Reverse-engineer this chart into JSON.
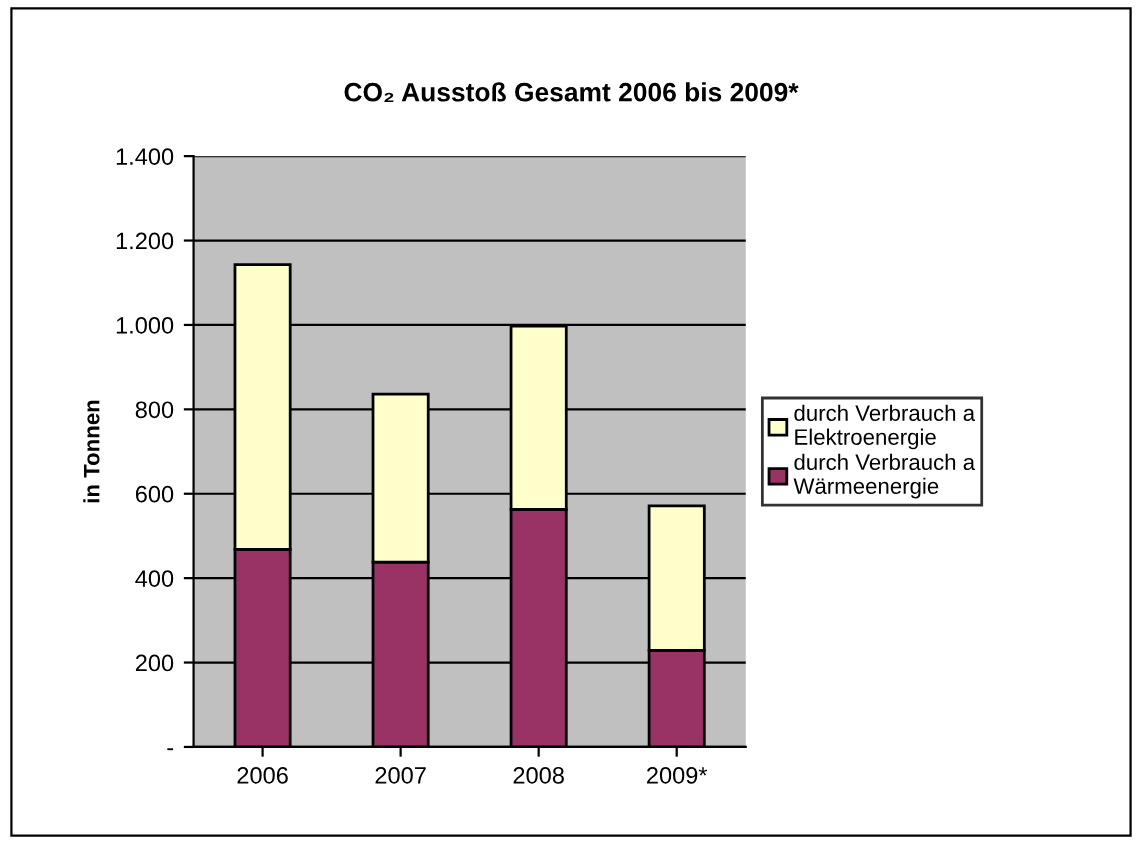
{
  "chart_data": {
    "type": "bar",
    "title": "CO₂ Ausstoß Gesamt 2006 bis 2009*",
    "ylabel": "in Tonnen",
    "categories": [
      "2006",
      "2007",
      "2008",
      "2009*"
    ],
    "series": [
      {
        "name": "durch Verbrauch a\nWärmeenergie",
        "color": "#993366",
        "values": [
          468,
          438,
          563,
          229
        ]
      },
      {
        "name": "durch Verbrauch a\nElektroenergie",
        "color": "#ffffcc",
        "values": [
          675,
          398,
          434,
          342
        ]
      }
    ],
    "stacked": true,
    "ylim": [
      0,
      1400
    ],
    "yticks": [
      {
        "value": 0,
        "label": "-"
      },
      200,
      400,
      600,
      800,
      {
        "value": 1000,
        "label": "1.000"
      },
      {
        "value": 1200,
        "label": "1.200"
      },
      {
        "value": 1400,
        "label": "1.400"
      }
    ],
    "grid": "y",
    "legend": "right"
  }
}
